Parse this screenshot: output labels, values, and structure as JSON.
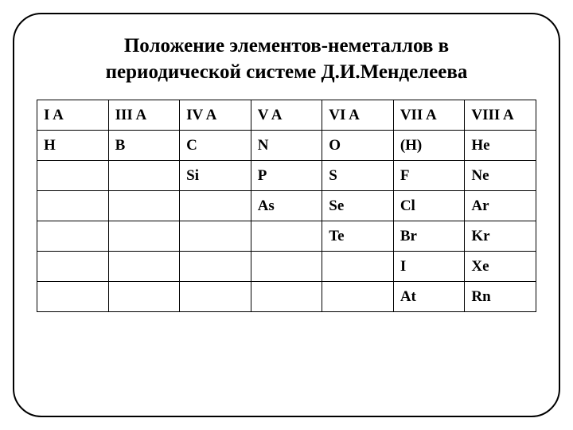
{
  "title_line1": "Положение элементов-неметаллов в",
  "title_line2": "периодической системе Д.И.Менделеева",
  "table": {
    "columns": [
      "I A",
      "III A",
      "IV A",
      "V A",
      "VI A",
      "VII A",
      "VIII A"
    ],
    "rows": [
      [
        "H",
        "B",
        "C",
        "N",
        "O",
        "(H)",
        "He"
      ],
      [
        "",
        "",
        "Si",
        "P",
        "S",
        "F",
        "Ne"
      ],
      [
        "",
        "",
        "",
        "As",
        "Se",
        "Cl",
        "Ar"
      ],
      [
        "",
        "",
        "",
        "",
        "Te",
        "Br",
        "Kr"
      ],
      [
        "",
        "",
        "",
        "",
        "",
        "I",
        "Xe"
      ],
      [
        "",
        "",
        "",
        "",
        "",
        "At",
        "Rn"
      ]
    ],
    "border_color": "#000000",
    "text_color": "#000000",
    "font_weight": "bold",
    "cell_fontsize": 19,
    "title_fontsize": 25,
    "background_color": "#ffffff",
    "frame_border_radius": 36
  }
}
